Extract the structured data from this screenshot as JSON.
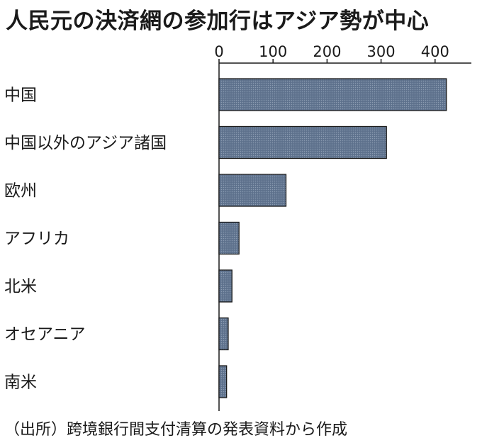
{
  "title": "人民元の決済網の参加行はアジア勢が中心",
  "source": "（出所）跨境銀行間支付清算の発表資料から作成",
  "chart_data": {
    "type": "bar",
    "orientation": "horizontal",
    "title": "人民元の決済網の参加行はアジア勢が中心",
    "xlabel": "",
    "ylabel": "",
    "xlim": [
      0,
      460
    ],
    "xticks": [
      0,
      100,
      200,
      300,
      400
    ],
    "x_axis_position": "top",
    "grid": false,
    "categories": [
      "中国",
      "中国以外のアジア諸国",
      "欧州",
      "アフリカ",
      "北米",
      "オセアニア",
      "南米"
    ],
    "values": [
      421,
      310,
      124,
      37,
      24,
      17,
      14
    ],
    "bar_color": "#5b6f8a"
  }
}
